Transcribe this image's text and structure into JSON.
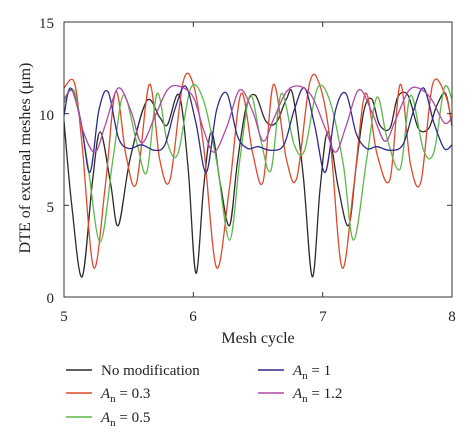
{
  "chart_data": {
    "type": "line",
    "title": "",
    "xlabel": "Mesh cycle",
    "ylabel": "DTE of external meshes (μm)",
    "xlim": [
      5,
      8
    ],
    "ylim": [
      0,
      15
    ],
    "xticks": [
      "5",
      "6",
      "7",
      "8"
    ],
    "yticks": [
      "0",
      "5",
      "10",
      "15"
    ],
    "grid": false,
    "legend_position": "bottom",
    "series": [
      {
        "name": "No modification",
        "color": "#2b2b2b",
        "x": [
          5.0,
          5.06,
          5.14,
          5.22,
          5.28,
          5.36,
          5.42,
          5.51,
          5.64,
          5.74,
          5.8,
          5.89,
          5.96,
          6.02,
          6.08,
          6.14,
          6.21,
          6.28,
          6.34,
          6.41,
          6.48,
          6.56,
          6.64,
          6.72,
          6.77,
          6.85,
          6.92,
          6.98,
          7.04,
          7.12,
          7.2,
          7.26,
          7.32,
          7.38,
          7.44,
          7.52,
          7.58,
          7.66,
          7.74,
          7.82,
          7.88,
          7.95,
          8.0
        ],
        "y": [
          9.6,
          5.0,
          1.1,
          6.3,
          9.0,
          6.2,
          3.9,
          7.5,
          10.7,
          9.8,
          9.4,
          11.0,
          7.0,
          1.3,
          6.0,
          9.0,
          6.1,
          3.9,
          7.3,
          10.4,
          11.0,
          9.6,
          9.5,
          10.8,
          11.0,
          6.6,
          1.1,
          5.9,
          9.0,
          6.0,
          3.9,
          7.2,
          10.2,
          10.8,
          9.4,
          9.2,
          10.9,
          11.0,
          9.2,
          9.2,
          10.4,
          11.1,
          9.3
        ]
      },
      {
        "name": "A_n = 0.3",
        "color": "#e0482a",
        "x": [
          5.0,
          5.08,
          5.14,
          5.23,
          5.32,
          5.4,
          5.48,
          5.56,
          5.66,
          5.74,
          5.82,
          5.92,
          6.0,
          6.08,
          6.18,
          6.28,
          6.37,
          6.46,
          6.54,
          6.62,
          6.72,
          6.8,
          6.9,
          6.98,
          7.06,
          7.15,
          7.24,
          7.33,
          7.42,
          7.52,
          7.6,
          7.68,
          7.76,
          7.85,
          7.95,
          8.0
        ],
        "y": [
          11.4,
          11.7,
          8.3,
          1.6,
          6.1,
          11.2,
          7.7,
          6.2,
          11.6,
          7.5,
          6.4,
          11.7,
          11.6,
          8.2,
          1.6,
          6.0,
          11.1,
          7.8,
          6.3,
          11.6,
          7.5,
          6.5,
          11.7,
          11.5,
          8.4,
          1.6,
          6.0,
          11.1,
          7.8,
          6.4,
          11.6,
          7.2,
          6.3,
          11.6,
          11.0,
          9.4
        ]
      },
      {
        "name": "A_n = 0.5",
        "color": "#5db84a",
        "x": [
          5.0,
          5.08,
          5.18,
          5.28,
          5.38,
          5.46,
          5.56,
          5.64,
          5.72,
          5.8,
          5.88,
          5.98,
          6.08,
          6.18,
          6.28,
          6.36,
          6.44,
          6.52,
          6.6,
          6.68,
          6.78,
          6.86,
          6.96,
          7.06,
          7.16,
          7.24,
          7.34,
          7.42,
          7.5,
          7.6,
          7.68,
          7.78,
          7.86,
          7.94,
          8.0
        ],
        "y": [
          10.6,
          11.2,
          7.4,
          3.0,
          7.6,
          11.0,
          8.5,
          6.8,
          11.1,
          8.4,
          7.8,
          11.4,
          10.7,
          7.4,
          3.1,
          7.5,
          11.0,
          8.6,
          6.9,
          11.1,
          8.3,
          8.0,
          11.4,
          10.6,
          7.2,
          3.1,
          7.5,
          10.9,
          8.6,
          7.0,
          11.0,
          8.0,
          7.9,
          11.4,
          10.8
        ]
      },
      {
        "name": "A_n = 1",
        "color": "#2e2a8c",
        "x": [
          5.0,
          5.05,
          5.13,
          5.2,
          5.27,
          5.34,
          5.42,
          5.5,
          5.6,
          5.7,
          5.78,
          5.86,
          5.94,
          6.02,
          6.1,
          6.18,
          6.26,
          6.34,
          6.42,
          6.5,
          6.6,
          6.7,
          6.78,
          6.86,
          6.94,
          7.02,
          7.1,
          7.18,
          7.26,
          7.34,
          7.42,
          7.52,
          7.62,
          7.7,
          7.78,
          7.86,
          7.94,
          8.0
        ],
        "y": [
          9.9,
          11.4,
          9.6,
          6.8,
          10.2,
          11.2,
          8.7,
          8.1,
          8.3,
          8.0,
          8.3,
          10.3,
          11.5,
          9.5,
          6.8,
          10.2,
          11.1,
          8.8,
          8.1,
          8.2,
          8.0,
          8.3,
          10.2,
          11.4,
          9.3,
          6.8,
          10.2,
          11.1,
          8.9,
          8.1,
          8.2,
          8.0,
          8.3,
          10.1,
          11.4,
          9.5,
          8.1,
          8.3
        ]
      },
      {
        "name": "A_n = 1.2",
        "color": "#b04aa8",
        "x": [
          5.0,
          5.07,
          5.15,
          5.24,
          5.32,
          5.42,
          5.52,
          5.6,
          5.7,
          5.8,
          5.89,
          6.0,
          6.08,
          6.16,
          6.26,
          6.36,
          6.46,
          6.54,
          6.62,
          6.72,
          6.82,
          6.92,
          7.02,
          7.1,
          7.18,
          7.28,
          7.38,
          7.48,
          7.56,
          7.66,
          7.74,
          7.84,
          7.94,
          8.0
        ],
        "y": [
          10.8,
          11.2,
          9.0,
          7.9,
          9.4,
          11.4,
          10.1,
          8.4,
          9.8,
          11.3,
          11.5,
          10.9,
          9.1,
          7.9,
          9.3,
          11.3,
          10.1,
          8.5,
          9.7,
          11.2,
          11.5,
          10.9,
          9.2,
          7.9,
          9.3,
          11.3,
          10.1,
          8.5,
          9.6,
          11.2,
          11.4,
          10.8,
          9.5,
          9.8
        ]
      }
    ]
  },
  "legend": {
    "items": [
      {
        "key": "no_mod",
        "text": "No modification",
        "color": "#2b2b2b"
      },
      {
        "key": "a03",
        "sym": "A",
        "sub": "n",
        "rest": " = 0.3",
        "color": "#e0482a"
      },
      {
        "key": "a05",
        "sym": "A",
        "sub": "n",
        "rest": " = 0.5",
        "color": "#5db84a"
      },
      {
        "key": "a1",
        "sym": "A",
        "sub": "n",
        "rest": " = 1",
        "color": "#2e2a8c"
      },
      {
        "key": "a12",
        "sym": "A",
        "sub": "n",
        "rest": " = 1.2",
        "color": "#b04aa8"
      }
    ]
  }
}
